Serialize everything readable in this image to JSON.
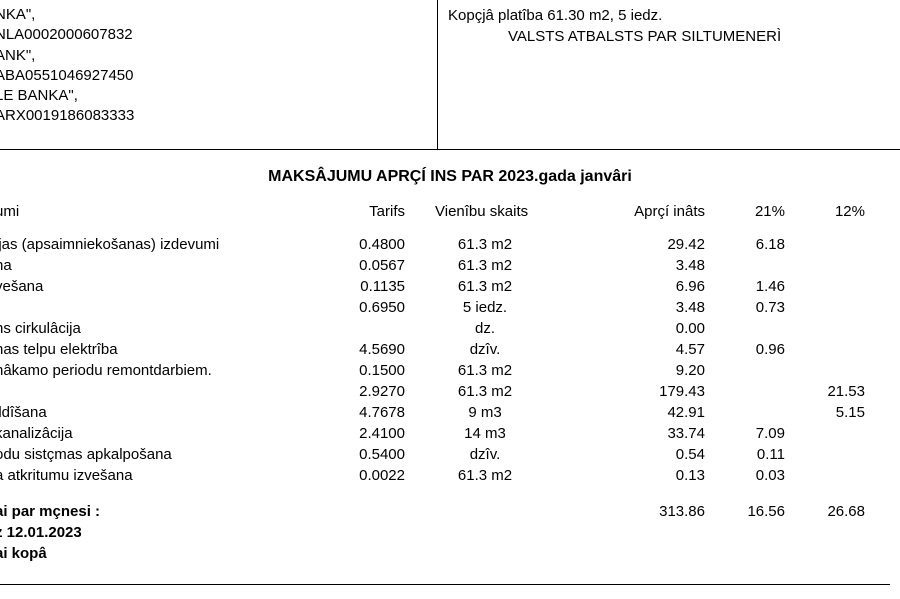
{
  "topLeft": {
    "lines": [
      "NKA\",",
      "NLA0002000607832",
      "ANK\",",
      "ABA0551046927450",
      "LE BANKA\",",
      "ARX0019186083333"
    ]
  },
  "topRight": {
    "line1": "Kopçjâ platîba 61.30 m2, 5 iedz.",
    "line2": "VALSTS  ATBALSTS PAR SILTUMENERÌ"
  },
  "title": "MAKSÂJUMU APRÇÍ INS  PAR  2023.gada janvâri",
  "headers": {
    "name": "umi",
    "tarif": "Tarifs",
    "units": "Vienîbu skaits",
    "calc": "Aprçí inâts",
    "c21": "21%",
    "c12": "12%"
  },
  "rows": [
    {
      "name": "ijas (apsaimniekošanas) izdevumi",
      "tarif": "0.4800",
      "units": "61.3 m2",
      "calc": "29.42",
      "c21": "6.18",
      "c12": ""
    },
    {
      "name": "na",
      "tarif": "0.0567",
      "units": "61.3 m2",
      "calc": "3.48",
      "c21": "",
      "c12": ""
    },
    {
      "name": "vešana",
      "tarif": "0.1135",
      "units": "61.3 m2",
      "calc": "6.96",
      "c21": "1.46",
      "c12": ""
    },
    {
      "name": "",
      "tarif": "0.6950",
      "units": "5 iedz.",
      "calc": "3.48",
      "c21": "0.73",
      "c12": ""
    },
    {
      "name": "ns cirkulâcija",
      "tarif": "",
      "units": "dz.",
      "calc": "0.00",
      "c21": "",
      "c12": ""
    },
    {
      "name": "nas telpu elektrîba",
      "tarif": "4.5690",
      "units": "dzîv.",
      "calc": "4.57",
      "c21": "0.96",
      "c12": ""
    },
    {
      "name": "nâkamo periodu remontdarbiem.",
      "tarif": "0.1500",
      "units": "61.3 m2",
      "calc": "9.20",
      "c21": "",
      "c12": ""
    },
    {
      "name": "",
      "tarif": "2.9270",
      "units": "61.3 m2",
      "calc": "179.43",
      "c21": "",
      "c12": "21.53"
    },
    {
      "name": "ildîšana",
      "tarif": "4.7678",
      "units": "9 m3",
      "calc": "42.91",
      "c21": "",
      "c12": "5.15"
    },
    {
      "name": "kanalizâcija",
      "tarif": "2.4100",
      "units": "14 m3",
      "calc": "33.74",
      "c21": "7.09",
      "c12": ""
    },
    {
      "name": "odu sistçmas apkalpošana",
      "tarif": "0.5400",
      "units": "dzîv.",
      "calc": "0.54",
      "c21": "0.11",
      "c12": ""
    },
    {
      "name": "a atkritumu izvešana",
      "tarif": "0.0022",
      "units": "61.3 m2",
      "calc": "0.13",
      "c21": "0.03",
      "c12": ""
    }
  ],
  "totals": {
    "line1": {
      "name": "ai par mçnesi :",
      "calc": "313.86",
      "c21": "16.56",
      "c12": "26.68"
    },
    "line2": "z   12.01.2023",
    "line3": "ai kopâ"
  }
}
